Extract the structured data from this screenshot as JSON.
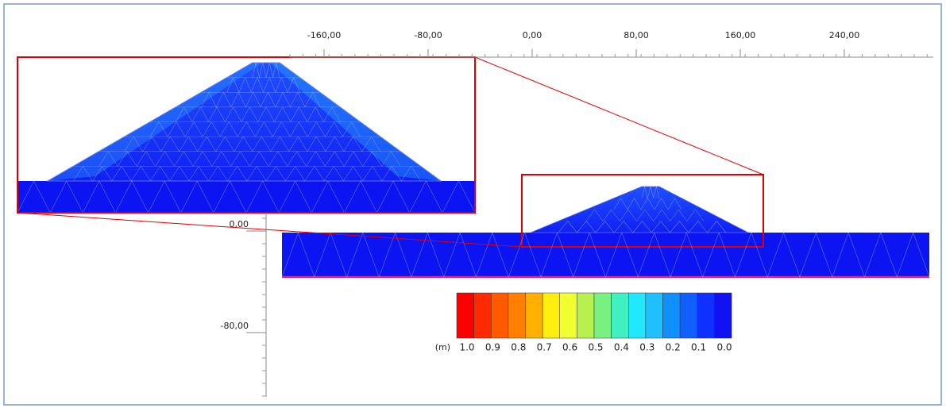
{
  "x_axis": {
    "ticks": [
      {
        "value": -160,
        "label": "-160,00"
      },
      {
        "value": -80,
        "label": "-80,00"
      },
      {
        "value": 0,
        "label": "0,00"
      },
      {
        "value": 80,
        "label": "80,00"
      },
      {
        "value": 160,
        "label": "160,00"
      },
      {
        "value": 240,
        "label": "240,00"
      }
    ]
  },
  "y_axis": {
    "ticks": [
      {
        "value": 0,
        "label": "0,00"
      },
      {
        "value": -80,
        "label": "-80,00"
      }
    ]
  },
  "legend": {
    "unit": "(m)",
    "labels": [
      "1.0",
      "0.9",
      "0.8",
      "0.7",
      "0.6",
      "0.5",
      "0.4",
      "0.3",
      "0.2",
      "0.1",
      "0.0"
    ],
    "colors": [
      "#ff0000",
      "#ff2a00",
      "#ff5a00",
      "#ff8000",
      "#ffb000",
      "#ffee10",
      "#f0ff30",
      "#b8f050",
      "#7af080",
      "#40f0c0",
      "#20e8ff",
      "#20c0ff",
      "#1090ff",
      "#1060ff",
      "#1030ff",
      "#1010f0"
    ]
  }
}
